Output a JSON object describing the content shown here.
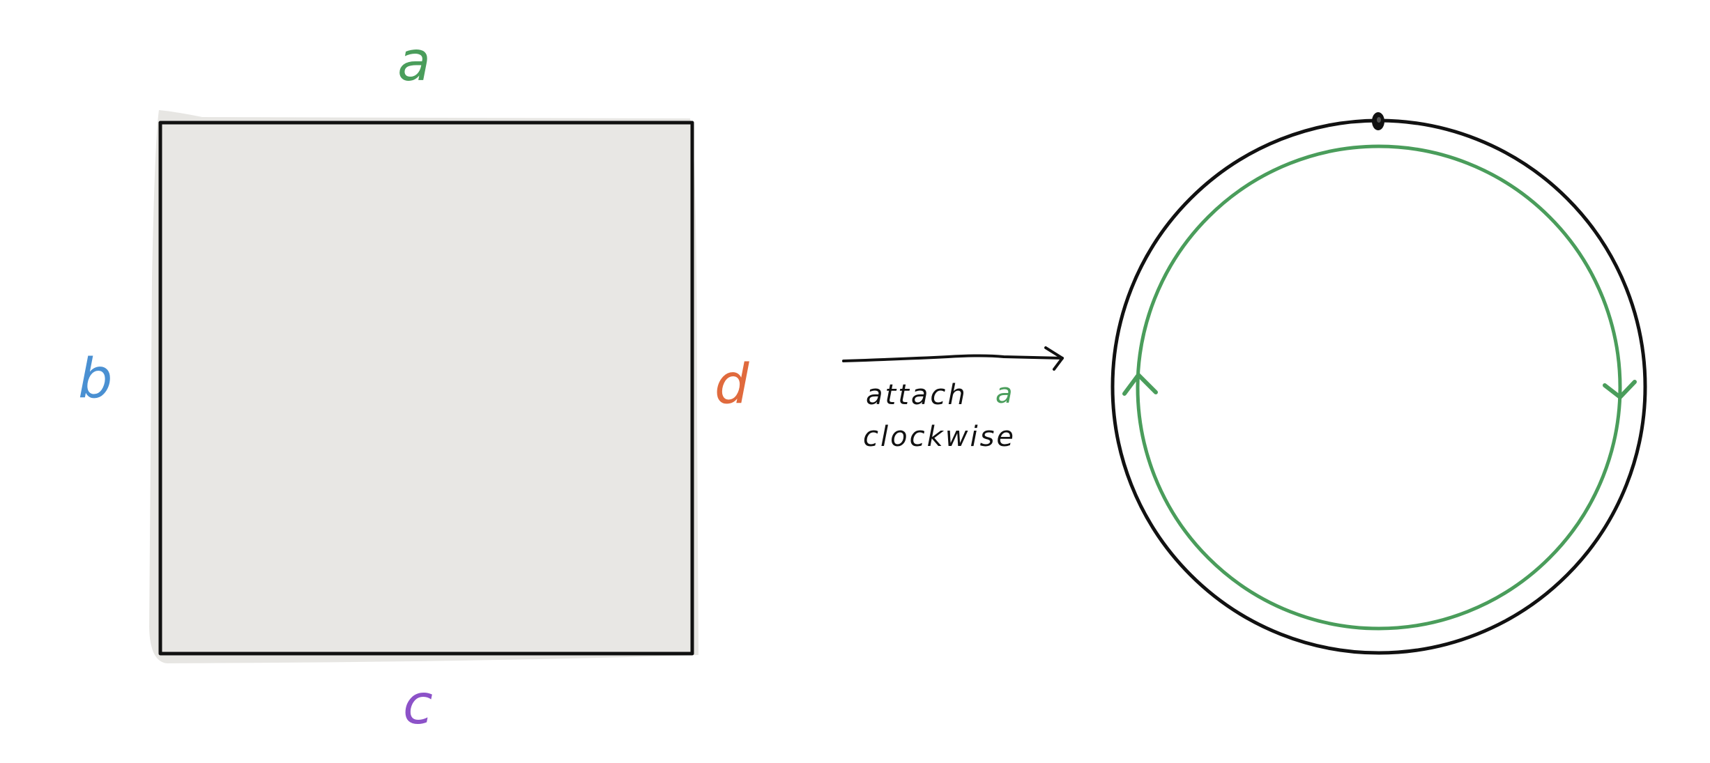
{
  "colors": {
    "background": "#ffffff",
    "square_fill": "#e8e7e4",
    "square_shadow": "#e3e2de",
    "outline": "#111111",
    "edge_a": "#4a9d5b",
    "edge_b": "#4a90d2",
    "edge_c": "#8c52c8",
    "edge_d": "#e06a3d",
    "loop": "#4a9d5b"
  },
  "square": {
    "edges": {
      "top": {
        "label": "a",
        "color_key": "edge_a"
      },
      "left": {
        "label": "b",
        "color_key": "edge_b"
      },
      "bottom": {
        "label": "c",
        "color_key": "edge_c"
      },
      "right": {
        "label": "d",
        "color_key": "edge_d"
      }
    }
  },
  "arrow": {
    "note_line1": "attach",
    "note_line2": "clockwise",
    "note_edge_label": "a",
    "icon": "right-arrow-icon"
  },
  "circle": {
    "basepoint_icon": "basepoint-dot-icon",
    "loop_direction": "clockwise"
  }
}
